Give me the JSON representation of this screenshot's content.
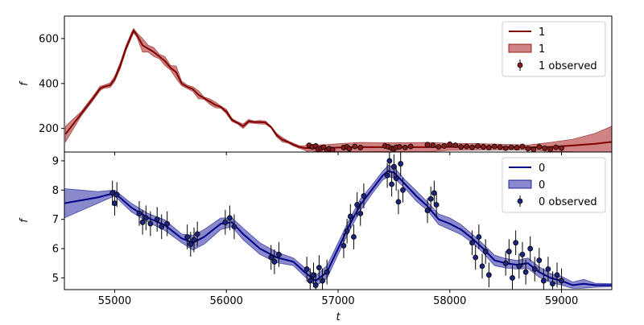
{
  "chart_data": [
    {
      "type": "line",
      "panel": "top",
      "xlabel": "",
      "ylabel": "f",
      "xlim": [
        54550,
        59450
      ],
      "ylim": [
        95,
        700
      ],
      "yticks": [
        200,
        400,
        600
      ],
      "grid": false,
      "legend_position": "top-right",
      "legend": [
        "1",
        "1",
        "1 observed"
      ],
      "colors": {
        "line": "#800000",
        "band": "#b03030",
        "points": "#8b1a1a"
      },
      "series": [
        {
          "name": "1",
          "kind": "prediction",
          "x": [
            54560,
            54700,
            54800,
            54870,
            54900,
            54960,
            55000,
            55050,
            55100,
            55150,
            55170,
            55200,
            55250,
            55300,
            55350,
            55400,
            55450,
            55500,
            55550,
            55600,
            55650,
            55700,
            55750,
            55800,
            55850,
            55900,
            55950,
            56000,
            56050,
            56100,
            56150,
            56200,
            56250,
            56300,
            56350,
            56400,
            56450,
            56500,
            56550,
            56600,
            56650,
            56700,
            56720,
            56750,
            56800,
            56900,
            57000,
            57200,
            57500,
            57800,
            58000,
            58300,
            58600,
            58700,
            58900,
            59100,
            59300,
            59450
          ],
          "y": [
            175,
            265,
            330,
            378,
            385,
            393,
            420,
            480,
            555,
            615,
            635,
            615,
            570,
            555,
            540,
            520,
            500,
            470,
            450,
            400,
            385,
            375,
            350,
            335,
            320,
            305,
            295,
            275,
            238,
            225,
            210,
            232,
            228,
            228,
            226,
            206,
            170,
            150,
            140,
            128,
            118,
            113,
            113,
            112,
            112,
            112,
            115,
            117,
            117,
            117,
            118,
            118,
            116,
            115,
            118,
            124,
            132,
            140
          ],
          "band_upper": [
            210,
            275,
            340,
            388,
            392,
            403,
            432,
            494,
            567,
            627,
            645,
            625,
            600,
            570,
            560,
            530,
            520,
            480,
            478,
            410,
            393,
            385,
            368,
            340,
            332,
            318,
            300,
            285,
            245,
            230,
            220,
            240,
            233,
            236,
            233,
            210,
            178,
            160,
            145,
            134,
            124,
            122,
            128,
            124,
            126,
            128,
            132,
            138,
            136,
            138,
            134,
            132,
            128,
            126,
            138,
            152,
            178,
            210
          ],
          "band_lower": [
            140,
            255,
            320,
            368,
            378,
            383,
            408,
            466,
            543,
            603,
            625,
            605,
            540,
            540,
            520,
            510,
            480,
            460,
            422,
            390,
            377,
            365,
            332,
            330,
            308,
            292,
            290,
            265,
            231,
            220,
            200,
            224,
            223,
            220,
            219,
            202,
            162,
            140,
            135,
            122,
            112,
            104,
            98,
            100,
            98,
            96,
            98,
            96,
            98,
            96,
            102,
            104,
            104,
            104,
            98,
            96,
            86,
            70
          ]
        },
        {
          "name": "1 observed",
          "kind": "observed",
          "x": [
            56740,
            56770,
            56800,
            56820,
            56850,
            56870,
            56900,
            56920,
            56950,
            57050,
            57080,
            57100,
            57150,
            57200,
            57420,
            57450,
            57480,
            57500,
            57520,
            57550,
            57600,
            57650,
            57800,
            57850,
            57900,
            57950,
            58000,
            58050,
            58100,
            58150,
            58200,
            58250,
            58300,
            58350,
            58400,
            58450,
            58500,
            58550,
            58600,
            58650,
            58700,
            58750,
            58800,
            58850,
            58900,
            58950,
            59000
          ],
          "y": [
            125,
            118,
            122,
            108,
            112,
            117,
            103,
            110,
            105,
            115,
            118,
            110,
            120,
            115,
            122,
            118,
            112,
            110,
            116,
            118,
            115,
            120,
            128,
            125,
            118,
            122,
            130,
            125,
            118,
            120,
            116,
            122,
            118,
            115,
            120,
            117,
            112,
            116,
            114,
            120,
            110,
            106,
            118,
            112,
            108,
            116,
            112
          ]
        }
      ]
    },
    {
      "type": "line",
      "panel": "bottom",
      "xlabel": "t",
      "ylabel": "f",
      "xlim": [
        54550,
        59450
      ],
      "ylim": [
        4.6,
        9.3
      ],
      "xticks": [
        55000,
        56000,
        57000,
        58000,
        59000
      ],
      "yticks": [
        5,
        6,
        7,
        8,
        9
      ],
      "grid": false,
      "legend_position": "top-right",
      "legend": [
        "0",
        "0",
        "0 observed"
      ],
      "colors": {
        "line": "#00008b",
        "band": "#3a3aa8",
        "points": "#1a237e"
      },
      "series": [
        {
          "name": "0",
          "kind": "prediction",
          "x": [
            54550,
            54700,
            54850,
            55000,
            55150,
            55300,
            55450,
            55600,
            55700,
            55800,
            55950,
            56050,
            56150,
            56300,
            56450,
            56600,
            56700,
            56800,
            56900,
            57000,
            57100,
            57200,
            57300,
            57400,
            57450,
            57500,
            57600,
            57700,
            57800,
            57900,
            58000,
            58100,
            58200,
            58300,
            58400,
            58500,
            58600,
            58700,
            58800,
            58900,
            59000,
            59100,
            59200,
            59300,
            59450
          ],
          "y": [
            7.55,
            7.65,
            7.75,
            7.9,
            7.4,
            7.05,
            6.8,
            6.35,
            6.2,
            6.4,
            6.85,
            6.9,
            6.5,
            6.0,
            5.7,
            5.55,
            5.2,
            4.9,
            5.2,
            6.0,
            6.8,
            7.5,
            8.0,
            8.5,
            8.65,
            8.6,
            8.2,
            7.8,
            7.45,
            7.0,
            6.85,
            6.65,
            6.35,
            6.0,
            5.6,
            5.5,
            5.45,
            5.5,
            5.2,
            5.0,
            4.9,
            4.75,
            4.8,
            4.75,
            4.75
          ],
          "band_upper": [
            8.05,
            8.0,
            7.95,
            8.0,
            7.55,
            7.2,
            6.98,
            6.5,
            6.45,
            6.65,
            7.05,
            7.05,
            6.7,
            6.2,
            5.88,
            5.68,
            5.35,
            5.08,
            5.42,
            6.2,
            7.0,
            7.7,
            8.15,
            8.65,
            8.85,
            8.78,
            8.35,
            7.98,
            7.6,
            7.18,
            7.05,
            6.82,
            6.5,
            6.15,
            5.78,
            5.66,
            5.6,
            5.68,
            5.38,
            5.15,
            5.05,
            4.86,
            4.95,
            4.82,
            4.8
          ],
          "band_lower": [
            7.05,
            7.3,
            7.55,
            7.8,
            7.25,
            6.9,
            6.62,
            6.2,
            5.95,
            6.15,
            6.65,
            6.75,
            6.3,
            5.8,
            5.52,
            5.42,
            5.05,
            4.72,
            4.98,
            5.8,
            6.6,
            7.3,
            7.85,
            8.35,
            8.45,
            8.42,
            8.05,
            7.62,
            7.3,
            6.82,
            6.65,
            6.48,
            6.2,
            5.85,
            5.42,
            5.34,
            5.3,
            5.32,
            5.02,
            4.85,
            4.75,
            4.64,
            4.65,
            4.68,
            4.7
          ]
        },
        {
          "name": "0 observed",
          "kind": "observed",
          "x": [
            54980,
            55000,
            55020,
            55220,
            55250,
            55280,
            55320,
            55380,
            55420,
            55470,
            55650,
            55680,
            55710,
            55740,
            55990,
            56030,
            56070,
            56400,
            56430,
            56470,
            56720,
            56750,
            56780,
            56800,
            56830,
            56860,
            56900,
            57050,
            57080,
            57110,
            57140,
            57170,
            57200,
            57230,
            57440,
            57460,
            57480,
            57500,
            57520,
            57540,
            57560,
            57580,
            57800,
            57830,
            57860,
            57880,
            58200,
            58230,
            58260,
            58290,
            58320,
            58350,
            58500,
            58530,
            58560,
            58590,
            58620,
            58650,
            58680,
            58720,
            58760,
            58800,
            58840,
            58880,
            58920,
            58960,
            59000
          ],
          "y": [
            7.9,
            7.55,
            7.85,
            7.2,
            6.9,
            7.05,
            6.85,
            7.0,
            6.75,
            6.85,
            6.4,
            6.15,
            6.3,
            6.5,
            6.9,
            7.05,
            6.75,
            5.7,
            5.55,
            5.8,
            5.3,
            4.9,
            5.1,
            4.75,
            5.35,
            4.9,
            5.2,
            6.1,
            6.6,
            7.1,
            6.4,
            7.5,
            7.2,
            7.8,
            8.5,
            9.0,
            8.2,
            8.8,
            8.4,
            7.6,
            8.9,
            8.0,
            7.3,
            7.7,
            7.9,
            7.5,
            6.2,
            5.7,
            6.4,
            5.4,
            5.9,
            5.1,
            5.5,
            5.9,
            5.0,
            6.2,
            5.4,
            5.8,
            5.2,
            6.0,
            5.3,
            5.6,
            4.9,
            5.3,
            4.8,
            5.1,
            4.9
          ]
        }
      ]
    }
  ]
}
